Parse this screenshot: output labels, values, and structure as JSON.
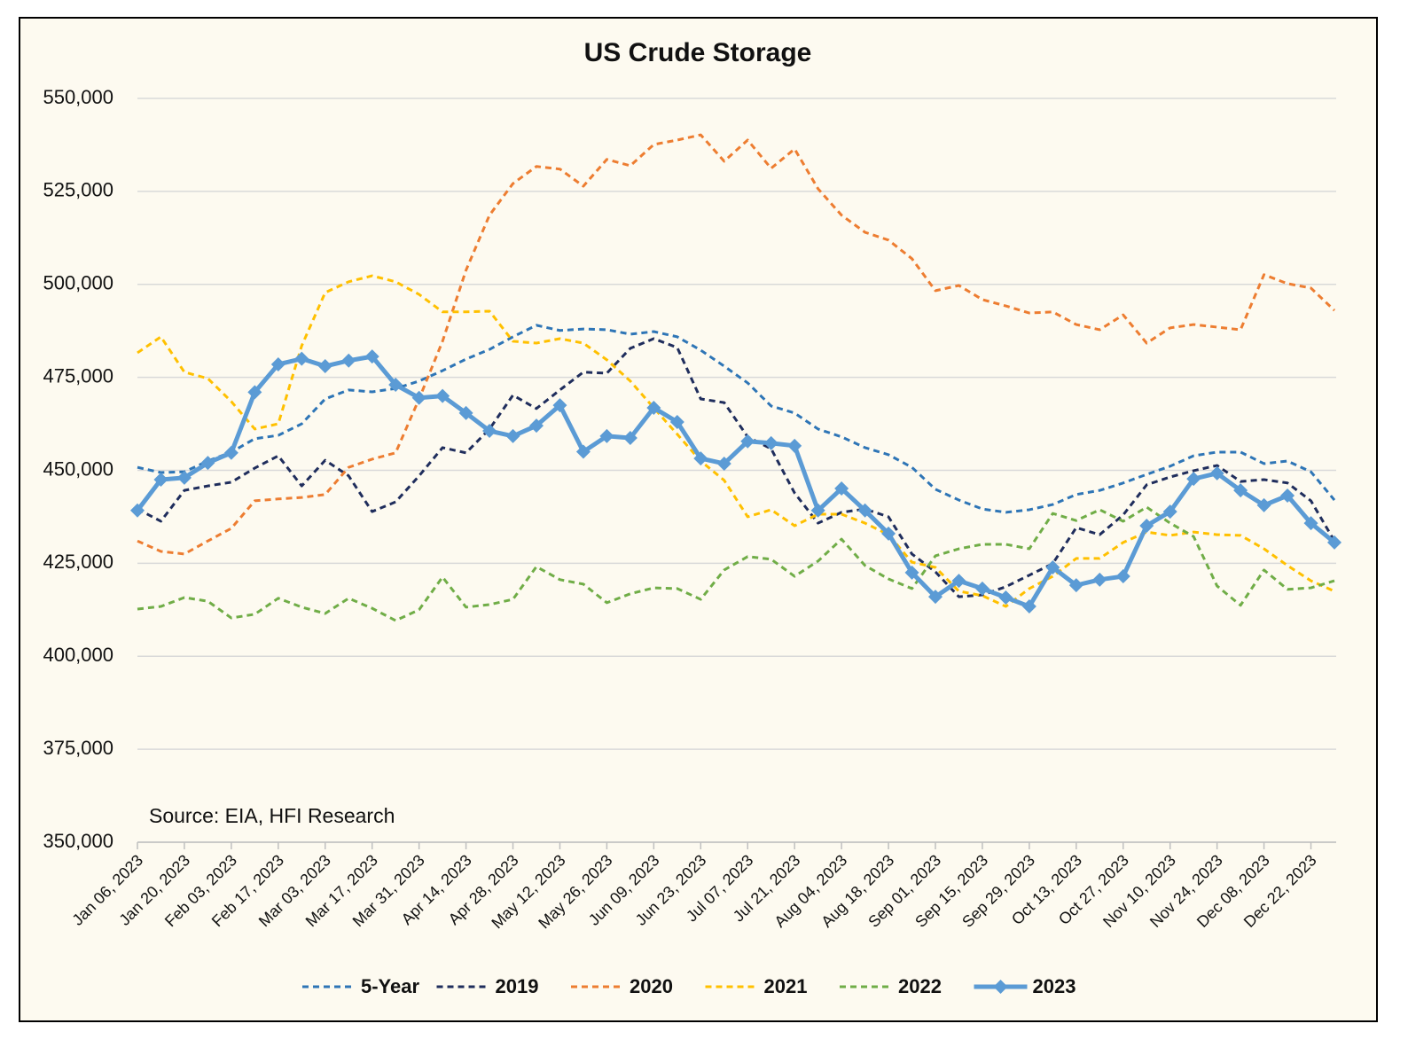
{
  "chart_data": {
    "type": "line",
    "title": "US Crude Storage",
    "annotation": "Source: EIA, HFI Research",
    "categories": [
      "Jan 06, 2023",
      null,
      "Jan 20, 2023",
      null,
      "Feb 03, 2023",
      null,
      "Feb 17, 2023",
      null,
      "Mar 03, 2023",
      null,
      "Mar 17, 2023",
      null,
      "Mar 31, 2023",
      null,
      "Apr 14, 2023",
      null,
      "Apr 28, 2023",
      null,
      "May 12, 2023",
      null,
      "May 26, 2023",
      null,
      "Jun 09, 2023",
      null,
      "Jun 23, 2023",
      null,
      "Jul 07, 2023",
      null,
      "Jul 21, 2023",
      null,
      "Aug 04, 2023",
      null,
      "Aug 18, 2023",
      null,
      "Sep 01, 2023",
      null,
      "Sep 15, 2023",
      null,
      "Sep 29, 2023",
      null,
      "Oct 13, 2023",
      null,
      "Oct 27, 2023",
      null,
      "Nov 10, 2023",
      null,
      "Nov 24, 2023",
      null,
      "Dec 08, 2023",
      null,
      "Dec 22, 2023",
      null
    ],
    "series": [
      {
        "name": "5-Year",
        "color": "#2e75b6",
        "dashed": true,
        "values": [
          450800,
          449400,
          449600,
          452500,
          454900,
          458500,
          459400,
          462500,
          469200,
          471600,
          471100,
          472000,
          474000,
          476800,
          479900,
          482500,
          485900,
          489000,
          487600,
          488000,
          487800,
          486600,
          487300,
          485900,
          482300,
          478000,
          473500,
          467300,
          465400,
          461100,
          459000,
          456100,
          454200,
          450800,
          444900,
          442000,
          439600,
          438700,
          439400,
          440800,
          443500,
          444600,
          446600,
          448900,
          451100,
          453900,
          454900,
          454900,
          451800,
          452500,
          449600,
          442000
        ]
      },
      {
        "name": "2019",
        "color": "#1f2d5c",
        "dashed": true,
        "values": [
          439600,
          436300,
          444600,
          445800,
          446800,
          450600,
          453900,
          445800,
          452700,
          448500,
          438900,
          441500,
          448500,
          456100,
          454700,
          461100,
          470200,
          466600,
          471600,
          476400,
          476100,
          482800,
          485400,
          483000,
          469200,
          468200,
          459000,
          455800,
          443900,
          435800,
          438700,
          439600,
          437500,
          427500,
          422700,
          416000,
          416500,
          418700,
          421800,
          424900,
          434600,
          432700,
          438000,
          446100,
          448200,
          449900,
          451300,
          447000,
          447500,
          446600,
          441800,
          431000
        ]
      },
      {
        "name": "2020",
        "color": "#ed7d31",
        "dashed": true,
        "values": [
          431000,
          428200,
          427500,
          431000,
          434400,
          441800,
          442300,
          442700,
          443500,
          450800,
          453000,
          454700,
          469200,
          484700,
          503800,
          518600,
          527100,
          531700,
          531000,
          526400,
          533600,
          531900,
          537600,
          538800,
          540200,
          533100,
          538800,
          531200,
          536400,
          525700,
          518600,
          514000,
          511900,
          506900,
          498300,
          499700,
          495900,
          494200,
          492300,
          492600,
          489200,
          487800,
          491800,
          484200,
          488300,
          489200,
          488500,
          487800,
          502600,
          500200,
          499000,
          493000
        ]
      },
      {
        "name": "2021",
        "color": "#ffc000",
        "dashed": true,
        "values": [
          481600,
          485900,
          476400,
          474700,
          468500,
          461100,
          462500,
          483500,
          497800,
          500700,
          502300,
          500700,
          497300,
          492600,
          492600,
          492800,
          484700,
          484200,
          485400,
          484200,
          479700,
          474000,
          466800,
          459700,
          452500,
          447300,
          437500,
          439400,
          435100,
          438200,
          438200,
          435800,
          432700,
          425300,
          423900,
          417500,
          416300,
          413400,
          418200,
          421500,
          426300,
          426300,
          430600,
          433400,
          432500,
          433400,
          432700,
          432500,
          428900,
          424400,
          420300,
          417500
        ]
      },
      {
        "name": "2022",
        "color": "#70ad47",
        "dashed": true,
        "values": [
          412700,
          413400,
          415800,
          414800,
          410300,
          411300,
          415600,
          413200,
          411500,
          415600,
          412900,
          409600,
          412500,
          421300,
          413200,
          413900,
          415300,
          424100,
          420600,
          419400,
          414400,
          416800,
          418400,
          418200,
          415300,
          423200,
          426800,
          426100,
          421500,
          425600,
          431500,
          424400,
          420800,
          418200,
          427000,
          428900,
          430100,
          430100,
          428900,
          438400,
          436500,
          439400,
          436300,
          440100,
          435800,
          432200,
          418900,
          413700,
          423200,
          418000,
          418400,
          420300
        ]
      },
      {
        "name": "2023",
        "color": "#5b9bd5",
        "dashed": false,
        "markers": true,
        "values": [
          439200,
          447500,
          448000,
          452000,
          454700,
          471000,
          478500,
          480000,
          478000,
          479500,
          480600,
          473000,
          469500,
          470000,
          465400,
          460600,
          459200,
          462000,
          467500,
          455000,
          459200,
          458700,
          466800,
          463000,
          453200,
          451800,
          457800,
          457300,
          456600,
          439200,
          445100,
          439200,
          433000,
          422500,
          416000,
          420300,
          418200,
          415800,
          413400,
          423900,
          419100,
          420600,
          421500,
          435100,
          438900,
          447700,
          449200,
          444600,
          440600,
          443200,
          435800,
          430600
        ]
      }
    ],
    "ylim": [
      350000,
      550000
    ],
    "yticks": [
      {
        "value": 350000,
        "label": "350,000"
      },
      {
        "value": 375000,
        "label": "375,000"
      },
      {
        "value": 400000,
        "label": "400,000"
      },
      {
        "value": 425000,
        "label": "425,000"
      },
      {
        "value": 450000,
        "label": "450,000"
      },
      {
        "value": 475000,
        "label": "475,000"
      },
      {
        "value": 500000,
        "label": "500,000"
      },
      {
        "value": 525000,
        "label": "525,000"
      },
      {
        "value": 550000,
        "label": "550,000"
      }
    ],
    "grid": true,
    "legend": "bottom"
  }
}
